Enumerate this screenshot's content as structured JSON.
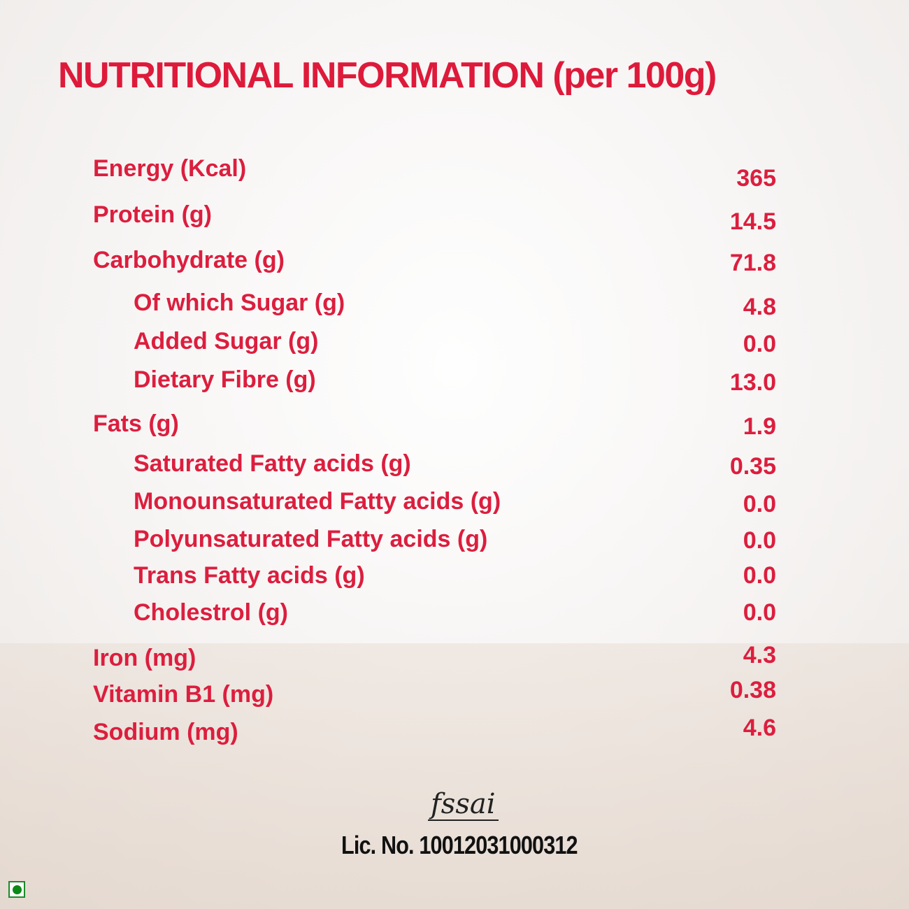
{
  "title": "NUTRITIONAL INFORMATION (per 100g)",
  "rows": [
    {
      "label": "Energy (Kcal)",
      "value": "365",
      "indent": false
    },
    {
      "label": "Protein (g)",
      "value": "14.5",
      "indent": false
    },
    {
      "label": "Carbohydrate  (g)",
      "value": "71.8",
      "indent": false
    },
    {
      "label": "Of which Sugar  (g)",
      "value": "4.8",
      "indent": true
    },
    {
      "label": "Added Sugar  (g)",
      "value": "0.0",
      "indent": true
    },
    {
      "label": "Dietary Fibre  (g)",
      "value": "13.0",
      "indent": true
    },
    {
      "label": "Fats  (g)",
      "value": "1.9",
      "indent": false
    },
    {
      "label": "Saturated Fatty acids  (g)",
      "value": "0.35",
      "indent": true
    },
    {
      "label": "Monounsaturated Fatty acids  (g)",
      "value": "0.0",
      "indent": true
    },
    {
      "label": "Polyunsaturated Fatty acids  (g)",
      "value": "0.0",
      "indent": true
    },
    {
      "label": "Trans Fatty acids  (g)",
      "value": "0.0",
      "indent": true
    },
    {
      "label": "Cholestrol  (g)",
      "value": "0.0",
      "indent": true
    },
    {
      "label": "Iron  (mg)",
      "value": "4.3",
      "indent": false
    },
    {
      "label": "Vitamin B1  (mg)",
      "value": "0.38",
      "indent": false
    },
    {
      "label": "Sodium (mg)",
      "value": "4.6",
      "indent": false
    }
  ],
  "fssai_logo": "fssai",
  "license": "Lic. No. 10012031000312",
  "veg_mark_color": "#0b8a16",
  "text_color": "#dc1e3e"
}
